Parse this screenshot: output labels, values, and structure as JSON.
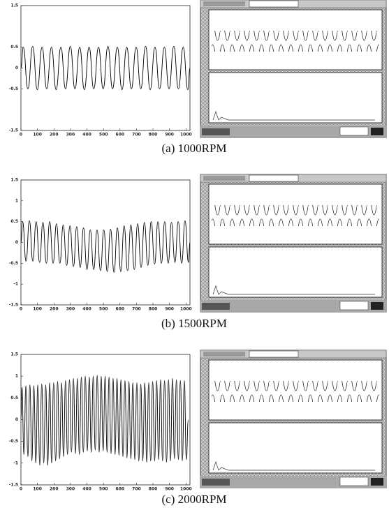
{
  "chart_data": [
    {
      "type": "line",
      "caption": "(a)  1000RPM",
      "color": "#000000",
      "xlim": [
        0,
        1024
      ],
      "xticks": [
        0,
        100,
        200,
        300,
        400,
        500,
        600,
        700,
        800,
        900,
        1000
      ],
      "ylim": [
        -1.5,
        1.5
      ],
      "yticks": [
        -1.5,
        -0.5,
        0,
        0.5,
        1.5
      ],
      "x": [
        0,
        14,
        42,
        71,
        99,
        128,
        156,
        185,
        213,
        242,
        270,
        299,
        327,
        356,
        384,
        413,
        441,
        470,
        498,
        527,
        555,
        584,
        612,
        641,
        669,
        698,
        726,
        755,
        783,
        812,
        840,
        869,
        897,
        926,
        954,
        983,
        1011,
        1024
      ],
      "values": [
        0,
        0.5,
        -0.5,
        0.52,
        -0.52,
        0.5,
        -0.5,
        0.5,
        -0.52,
        0.5,
        -0.5,
        0.52,
        -0.5,
        0.5,
        -0.52,
        0.5,
        -0.5,
        0.5,
        -0.5,
        0.52,
        -0.5,
        0.5,
        -0.52,
        0.5,
        -0.5,
        0.5,
        -0.5,
        0.52,
        -0.52,
        0.5,
        -0.5,
        0.5,
        -0.5,
        0.52,
        -0.5,
        0.5,
        -0.52,
        0
      ]
    },
    {
      "type": "line",
      "caption": "(b)  1500RPM",
      "color": "#000000",
      "xlim": [
        0,
        1024
      ],
      "xticks": [
        0,
        100,
        200,
        300,
        400,
        500,
        600,
        700,
        800,
        900,
        1000
      ],
      "ylim": [
        -1.5,
        1.5
      ],
      "yticks": [
        -1.5,
        -1,
        -0.5,
        0,
        0.5,
        1,
        1.5
      ],
      "x": [
        0,
        10,
        31,
        51,
        72,
        92,
        113,
        133,
        154,
        174,
        195,
        215,
        236,
        256,
        277,
        297,
        318,
        338,
        359,
        379,
        400,
        420,
        441,
        461,
        482,
        502,
        523,
        543,
        564,
        584,
        605,
        625,
        646,
        666,
        687,
        707,
        728,
        748,
        769,
        789,
        810,
        830,
        851,
        871,
        892,
        912,
        933,
        953,
        974,
        994,
        1015,
        1024
      ],
      "values": [
        0,
        0.5,
        -0.45,
        0.52,
        -0.45,
        0.5,
        -0.48,
        0.48,
        -0.5,
        0.5,
        -0.5,
        0.45,
        -0.5,
        0.42,
        -0.55,
        0.4,
        -0.58,
        0.38,
        -0.6,
        0.35,
        -0.65,
        0.3,
        -0.65,
        0.3,
        -0.68,
        0.3,
        -0.7,
        0.32,
        -0.72,
        0.35,
        -0.7,
        0.4,
        -0.68,
        0.42,
        -0.65,
        0.45,
        -0.6,
        0.48,
        -0.55,
        0.5,
        -0.52,
        0.5,
        -0.5,
        0.5,
        -0.5,
        0.48,
        -0.48,
        0.5,
        -0.5,
        0.52,
        -0.48,
        0
      ]
    },
    {
      "type": "line",
      "caption": "(c)  2000RPM",
      "color": "#000000",
      "xlim": [
        0,
        1024
      ],
      "xticks": [
        0,
        100,
        200,
        300,
        400,
        500,
        600,
        700,
        800,
        900,
        1000
      ],
      "ylim": [
        -1.5,
        1.5
      ],
      "yticks": [
        -1.5,
        -1,
        -0.5,
        0,
        0.5,
        1,
        1.5
      ],
      "x": [
        0,
        6,
        18,
        30,
        42,
        54,
        66,
        78,
        90,
        102,
        114,
        126,
        138,
        150,
        162,
        174,
        186,
        198,
        210,
        222,
        234,
        246,
        258,
        270,
        282,
        294,
        306,
        318,
        330,
        342,
        354,
        366,
        378,
        390,
        402,
        414,
        426,
        438,
        450,
        462,
        474,
        486,
        498,
        510,
        522,
        534,
        546,
        558,
        570,
        582,
        594,
        606,
        618,
        630,
        642,
        654,
        666,
        678,
        690,
        702,
        714,
        726,
        738,
        750,
        762,
        774,
        786,
        798,
        810,
        822,
        834,
        846,
        858,
        870,
        882,
        894,
        906,
        918,
        930,
        942,
        954,
        966,
        978,
        990,
        1002,
        1014
      ],
      "values": [
        0,
        0.75,
        -0.8,
        0.78,
        -0.85,
        0.8,
        -0.95,
        0.78,
        -1,
        0.8,
        -1.05,
        0.82,
        -1,
        0.8,
        -1.05,
        0.85,
        -1,
        0.85,
        -0.95,
        0.88,
        -0.9,
        0.85,
        -0.85,
        0.9,
        -0.8,
        0.92,
        -0.75,
        0.95,
        -0.78,
        0.95,
        -0.8,
        0.98,
        -0.75,
        1,
        -0.72,
        0.98,
        -0.75,
        1,
        -0.7,
        1.02,
        -0.75,
        1,
        -0.72,
        1,
        -0.75,
        0.98,
        -0.78,
        0.95,
        -0.8,
        0.95,
        -0.82,
        0.92,
        -0.85,
        0.9,
        -0.88,
        0.88,
        -0.9,
        0.85,
        -0.92,
        0.85,
        -0.95,
        0.82,
        -0.95,
        0.85,
        -0.98,
        0.85,
        -0.95,
        0.88,
        -0.95,
        0.9,
        -0.92,
        0.92,
        -0.95,
        0.9,
        -0.98,
        0.92,
        -0.95,
        0.95,
        -0.9,
        0.92,
        -0.92,
        0.9,
        -0.95,
        0.9,
        -0.92,
        0
      ]
    }
  ]
}
